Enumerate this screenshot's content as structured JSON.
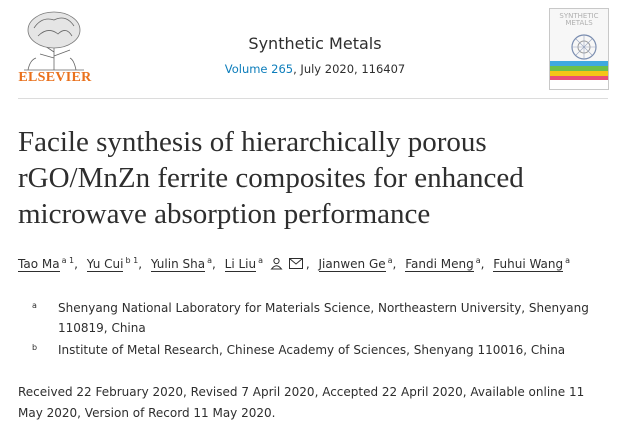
{
  "publisher": {
    "name": "ELSEVIER"
  },
  "journal": {
    "name": "Synthetic Metals",
    "volume_link": "Volume 265",
    "citation_rest": ", July 2020, 116407",
    "cover_title": "SYNTHETIC METALS"
  },
  "article": {
    "title": "Facile synthesis of hierarchically porous rGO/MnZn ferrite composites for enhanced microwave absorption performance"
  },
  "authors": [
    {
      "name": "Tao Ma",
      "sup": "a 1"
    },
    {
      "name": "Yu Cui",
      "sup": "b 1"
    },
    {
      "name": "Yulin Sha",
      "sup": "a"
    },
    {
      "name": "Li Liu",
      "sup": "a"
    },
    {
      "name": "Jianwen Ge",
      "sup": "a"
    },
    {
      "name": "Fandi Meng",
      "sup": "a"
    },
    {
      "name": "Fuhui Wang",
      "sup": "a"
    }
  ],
  "affiliations": [
    {
      "label": "a",
      "text": "Shenyang National Laboratory for Materials Science, Northeastern University, Shenyang 110819, China"
    },
    {
      "label": "b",
      "text": "Institute of Metal Research, Chinese Academy of Sciences, Shenyang 110016, China"
    }
  ],
  "dates": "Received 22 February 2020, Revised 7 April 2020, Accepted 22 April 2020, Available online 11 May 2020, Version of Record 11 May 2020.",
  "colors": {
    "link": "#0c7dbb",
    "publisher_orange": "#e9711c",
    "text": "#2e2e2e"
  },
  "icons": [
    "elsevier-tree-logo",
    "person-icon",
    "envelope-icon",
    "journal-cover-thumbnail"
  ]
}
